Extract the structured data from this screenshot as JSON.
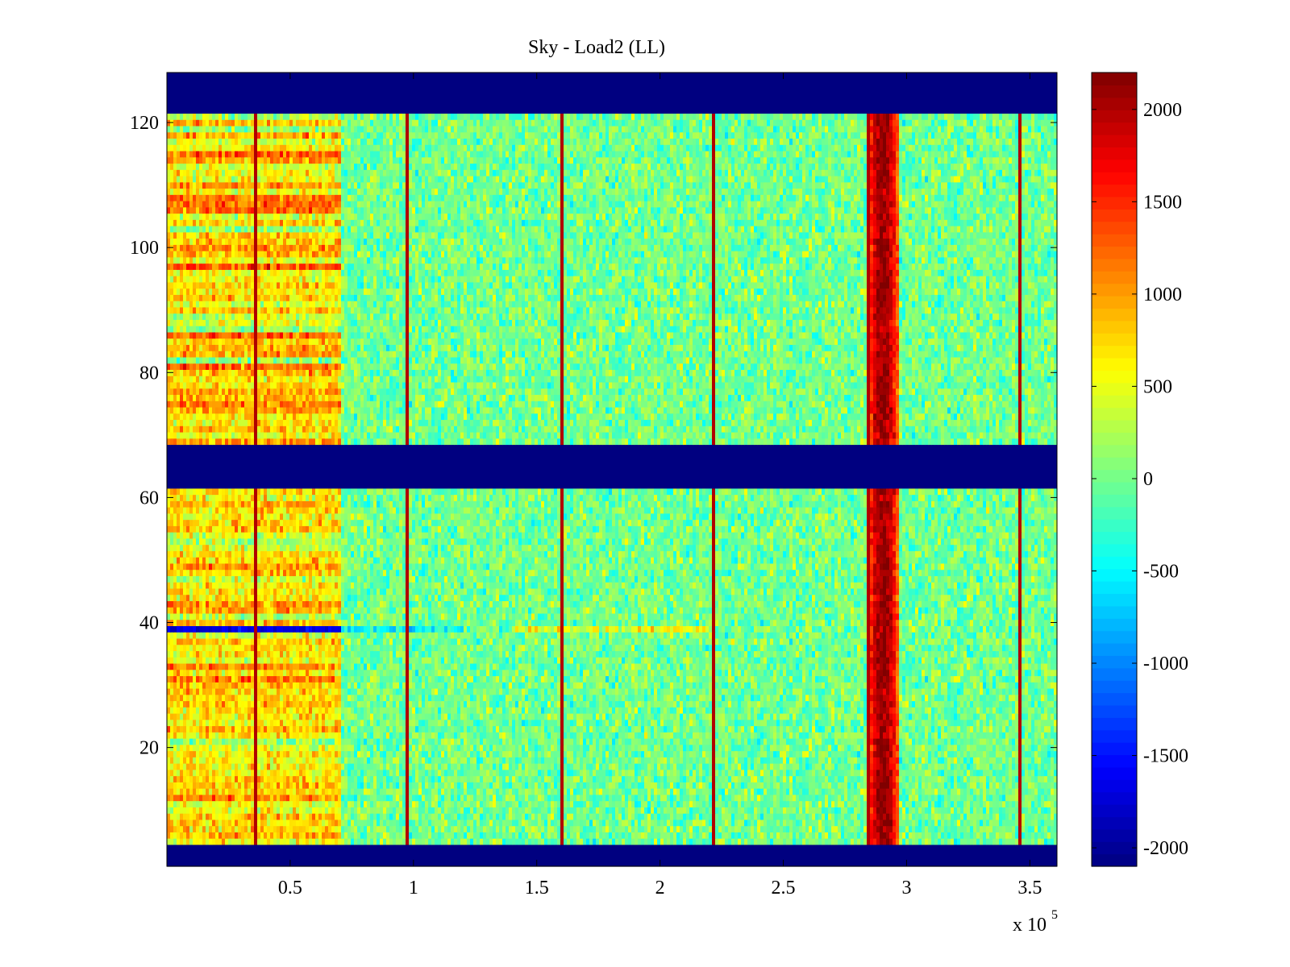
{
  "chart_data": {
    "type": "heatmap",
    "title": "Sky - Load2 (LL)",
    "xlabel": "",
    "ylabel": "",
    "x_multiplier_label": "x 10",
    "x_multiplier_exponent": "5",
    "xlim": [
      0.0,
      3.61
    ],
    "ylim": [
      1,
      128
    ],
    "x_ticks": [
      0.5,
      1,
      1.5,
      2,
      2.5,
      3,
      3.5
    ],
    "x_tick_labels": [
      "0.5",
      "1",
      "1.5",
      "2",
      "2.5",
      "3",
      "3.5"
    ],
    "y_ticks": [
      20,
      40,
      60,
      80,
      100,
      120
    ],
    "y_tick_labels": [
      "20",
      "40",
      "60",
      "80",
      "100",
      "120"
    ],
    "colorbar": {
      "colormap": "jet",
      "clim": [
        -2100,
        2200
      ],
      "ticks": [
        2000,
        1500,
        1000,
        500,
        0,
        -500,
        -1000,
        -1500,
        -2000
      ],
      "tick_labels": [
        "2000",
        "1500",
        "1000",
        "500",
        "0",
        "-500",
        "-1000",
        "-1500",
        "-2000"
      ]
    },
    "masked_channel_bands": [
      [
        1,
        4
      ],
      [
        62,
        68
      ],
      [
        122,
        128
      ]
    ],
    "mask_value": -2100,
    "spike_columns_x": [
      0.356,
      0.976,
      1.598,
      2.22,
      2.84,
      3.462
    ],
    "strong_feature": {
      "x_range": [
        2.85,
        2.96
      ],
      "peak_value": 2100
    },
    "left_block": {
      "x_range": [
        0.0,
        0.7
      ],
      "typical_value": 700
    },
    "low_channel_row": {
      "channel": 39,
      "x_range": [
        0.0,
        0.7
      ],
      "value": -1700
    },
    "background_value": 0
  }
}
